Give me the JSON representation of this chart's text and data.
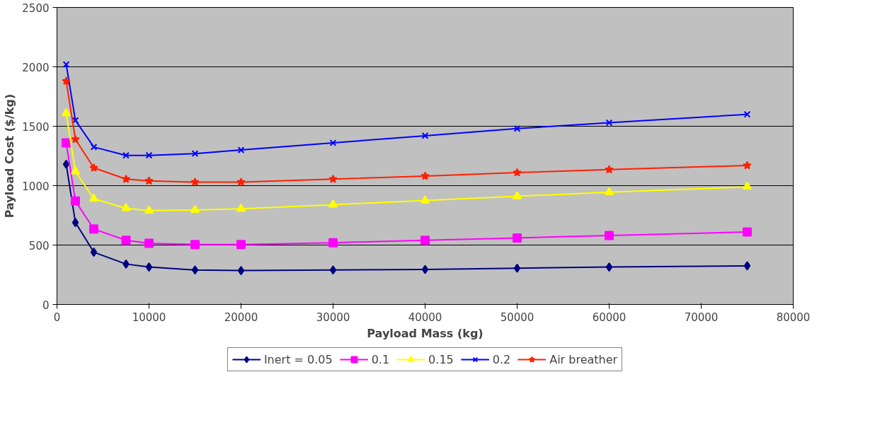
{
  "chart_data": {
    "type": "line",
    "xlabel": "Payload Mass (kg)",
    "ylabel": "Payload Cost ($/kg)",
    "x": [
      1000,
      2000,
      4000,
      7500,
      10000,
      15000,
      20000,
      30000,
      40000,
      50000,
      60000,
      75000
    ],
    "xlim": [
      0,
      80000
    ],
    "xticks": [
      0,
      10000,
      20000,
      30000,
      40000,
      50000,
      60000,
      70000,
      80000
    ],
    "ylim": [
      0,
      2500
    ],
    "yticks": [
      0,
      500,
      1000,
      1500,
      2000,
      2500
    ],
    "grid": "y",
    "legend": "bottom",
    "series": [
      {
        "name": "Inert = 0.05",
        "color": "#000080",
        "marker": "diamond",
        "values": [
          1180,
          690,
          440,
          340,
          315,
          290,
          285,
          290,
          295,
          305,
          315,
          325
        ]
      },
      {
        "name": "0.1",
        "color": "#ff00ff",
        "marker": "square",
        "values": [
          1360,
          870,
          635,
          540,
          515,
          505,
          505,
          520,
          540,
          560,
          580,
          610
        ]
      },
      {
        "name": "0.15",
        "color": "#ffff00",
        "marker": "triangle",
        "values": [
          1610,
          1120,
          890,
          810,
          790,
          795,
          805,
          840,
          875,
          910,
          945,
          990
        ]
      },
      {
        "name": "0.2",
        "color": "#0000ff",
        "marker": "cross",
        "values": [
          2020,
          1550,
          1325,
          1255,
          1255,
          1270,
          1300,
          1360,
          1420,
          1480,
          1530,
          1600
        ]
      },
      {
        "name": "Air breather",
        "color": "#ff2000",
        "marker": "star",
        "values": [
          1880,
          1390,
          1150,
          1055,
          1040,
          1030,
          1030,
          1055,
          1080,
          1110,
          1135,
          1170
        ]
      }
    ]
  }
}
